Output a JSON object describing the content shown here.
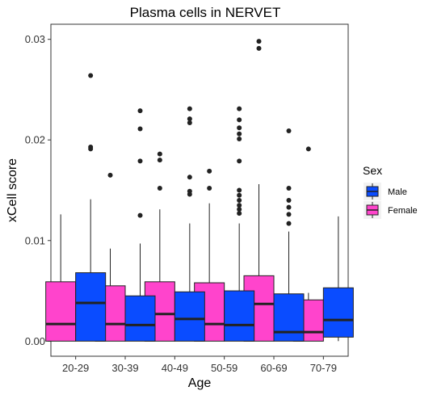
{
  "chart_data": {
    "type": "box",
    "title": "Plasma cells in NERVET",
    "xlabel": "Age",
    "ylabel": "xCell score",
    "categories": [
      "20-29",
      "30-39",
      "40-49",
      "50-59",
      "60-69",
      "70-79"
    ],
    "ylim": [
      -0.0015,
      0.0315
    ],
    "yticks": [
      0.0,
      0.01,
      0.02,
      0.03
    ],
    "ytick_labels": [
      "0.00",
      "0.01",
      "0.02",
      "0.03"
    ],
    "grid": false,
    "legend": {
      "title": "Sex",
      "position": "right",
      "entries": [
        "Male",
        "Female"
      ]
    },
    "series": [
      {
        "name": "Female",
        "color": "#ff44cc",
        "boxes": [
          {
            "min": 0.0,
            "q1": 0.0,
            "median": 0.0017,
            "q3": 0.0059,
            "max": 0.0126,
            "outliers": []
          },
          {
            "min": 0.0,
            "q1": 0.0,
            "median": 0.0017,
            "q3": 0.0055,
            "max": 0.0092,
            "outliers": [
              0.0165
            ]
          },
          {
            "min": 0.0,
            "q1": 0.0,
            "median": 0.0027,
            "q3": 0.0059,
            "max": 0.0131,
            "outliers": [
              0.0152,
              0.018,
              0.0186
            ]
          },
          {
            "min": 0.0,
            "q1": 0.0,
            "median": 0.0017,
            "q3": 0.0058,
            "max": 0.0137,
            "outliers": [
              0.0152,
              0.0169
            ]
          },
          {
            "min": 0.0,
            "q1": 0.0,
            "median": 0.0037,
            "q3": 0.0065,
            "max": 0.0156,
            "outliers": [
              0.0291,
              0.0298
            ]
          },
          {
            "min": 0.0,
            "q1": 0.0,
            "median": 0.0009,
            "q3": 0.0041,
            "max": 0.0048,
            "outliers": [
              0.0191
            ]
          }
        ]
      },
      {
        "name": "Male",
        "color": "#0a4cff",
        "boxes": [
          {
            "min": 0.0,
            "q1": 0.0,
            "median": 0.0038,
            "q3": 0.0068,
            "max": 0.0141,
            "outliers": [
              0.0191,
              0.0193,
              0.0264
            ]
          },
          {
            "min": 0.0,
            "q1": 0.0,
            "median": 0.0016,
            "q3": 0.0045,
            "max": 0.0097,
            "outliers": [
              0.0125,
              0.0179,
              0.0211,
              0.0229
            ]
          },
          {
            "min": 0.0,
            "q1": 0.0,
            "median": 0.0022,
            "q3": 0.0049,
            "max": 0.0117,
            "outliers": [
              0.0146,
              0.0149,
              0.0163,
              0.0217,
              0.0221,
              0.0231
            ]
          },
          {
            "min": 0.0,
            "q1": 0.0,
            "median": 0.0016,
            "q3": 0.005,
            "max": 0.0117,
            "outliers": [
              0.0127,
              0.0131,
              0.0135,
              0.014,
              0.0145,
              0.015,
              0.0179,
              0.0201,
              0.0206,
              0.0212,
              0.022,
              0.0231
            ]
          },
          {
            "min": 0.0,
            "q1": 0.0,
            "median": 0.0009,
            "q3": 0.0047,
            "max": 0.0109,
            "outliers": [
              0.0117,
              0.0126,
              0.0133,
              0.014,
              0.0152,
              0.0209
            ]
          },
          {
            "min": 0.0,
            "q1": 0.0004,
            "median": 0.0021,
            "q3": 0.0053,
            "max": 0.0124,
            "outliers": []
          }
        ]
      }
    ]
  }
}
